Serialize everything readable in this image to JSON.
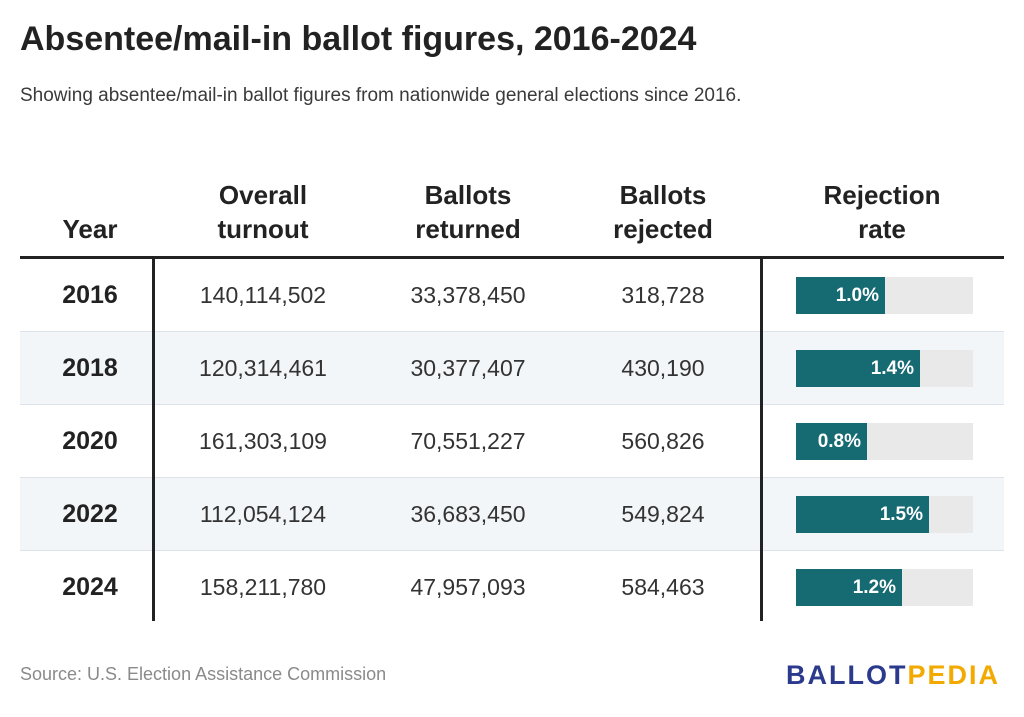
{
  "title": "Absentee/mail-in ballot figures, 2016-2024",
  "subtitle": "Showing absentee/mail-in ballot figures from nationwide general elections since 2016.",
  "headers": {
    "year": [
      "Year"
    ],
    "turnout": [
      "Overall",
      "turnout"
    ],
    "returned": [
      "Ballots",
      "returned"
    ],
    "rejected": [
      "Ballots",
      "rejected"
    ],
    "rate": [
      "Rejection",
      "rate"
    ]
  },
  "colors": {
    "bar": "#166a71",
    "track": "#e9e9e9",
    "shade": "#f3f6f9"
  },
  "chart_data": {
    "type": "table",
    "columns": [
      "Year",
      "Overall turnout",
      "Ballots returned",
      "Ballots rejected",
      "Rejection rate"
    ],
    "rate_max": 2.0,
    "rows": [
      {
        "year": "2016",
        "turnout": "140,114,502",
        "returned": "33,378,450",
        "rejected": "318,728",
        "rate": 1.0,
        "rate_label": "1.0%"
      },
      {
        "year": "2018",
        "turnout": "120,314,461",
        "returned": "30,377,407",
        "rejected": "430,190",
        "rate": 1.4,
        "rate_label": "1.4%"
      },
      {
        "year": "2020",
        "turnout": "161,303,109",
        "returned": "70,551,227",
        "rejected": "560,826",
        "rate": 0.8,
        "rate_label": "0.8%"
      },
      {
        "year": "2022",
        "turnout": "112,054,124",
        "returned": "36,683,450",
        "rejected": "549,824",
        "rate": 1.5,
        "rate_label": "1.5%"
      },
      {
        "year": "2024",
        "turnout": "158,211,780",
        "returned": "47,957,093",
        "rejected": "584,463",
        "rate": 1.2,
        "rate_label": "1.2%"
      }
    ]
  },
  "source": "Source: U.S. Election Assistance Commission",
  "logo": {
    "part1": "BALLOT",
    "part2": "PEDIA"
  }
}
